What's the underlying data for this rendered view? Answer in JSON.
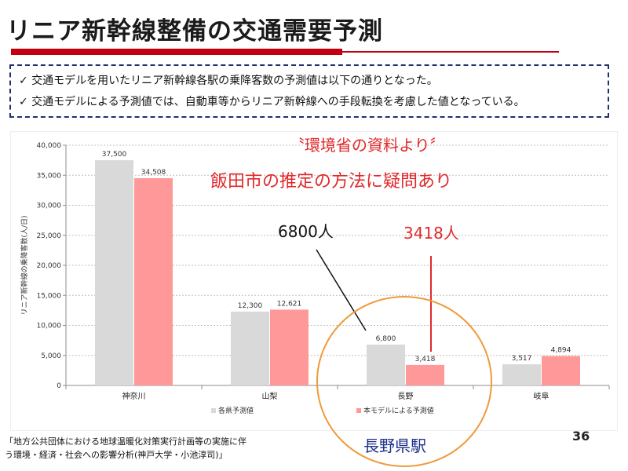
{
  "slide": {
    "title": "リニア新幹線整備の交通需要予測",
    "bullets": [
      "✓ 交通モデルを用いたリニア新幹線各駅の乗降客数の予測値は以下の通りとなった。",
      "✓ 交通モデルによる予測値では、自動車等からリニア新幹線への手段転換を考慮した値となっている。"
    ],
    "page_number": "36",
    "source_line1": "「地方公共団体における地球温暖化対策実行計画等の実施に伴",
    "source_line2": "う環境・経済・社会への影響分析(神戸大学・小池淳司)」"
  },
  "annotations": {
    "quote": "〝環境省の資料より〞",
    "doubt": "飯田市の推定の方法に疑問あり",
    "callout_6800": "6800人",
    "callout_3418": "3418人",
    "circle_label": "長野県駅"
  },
  "colors": {
    "series_pref": "#d9d9d9",
    "series_model": "#ff9999",
    "annotation_red": "#e0292b",
    "circle_orange": "#ef9a3a",
    "label_blue": "#1f2f8a"
  },
  "chart_data": {
    "type": "bar",
    "categories": [
      "神奈川",
      "山梨",
      "長野",
      "岐阜"
    ],
    "series": [
      {
        "name": "各県予測値",
        "values": [
          37500,
          12300,
          6800,
          3517
        ],
        "labels": [
          "37,500",
          "12,300",
          "6,800",
          "3,517"
        ]
      },
      {
        "name": "本モデルによる予測値",
        "values": [
          34508,
          12621,
          3418,
          4894
        ],
        "labels": [
          "34,508",
          "12,621",
          "3,418",
          "4,894"
        ]
      }
    ],
    "ylabel": "リニア新幹線の乗降客数(人/日)",
    "xlabel": "",
    "ylim": [
      0,
      40000
    ],
    "yticks": [
      0,
      5000,
      10000,
      15000,
      20000,
      25000,
      30000,
      35000,
      40000
    ],
    "ytick_labels": [
      "0",
      "5,000",
      "10,000",
      "15,000",
      "20,000",
      "25,000",
      "30,000",
      "35,000",
      "40,000"
    ],
    "grid": true,
    "legend": "bottom"
  }
}
